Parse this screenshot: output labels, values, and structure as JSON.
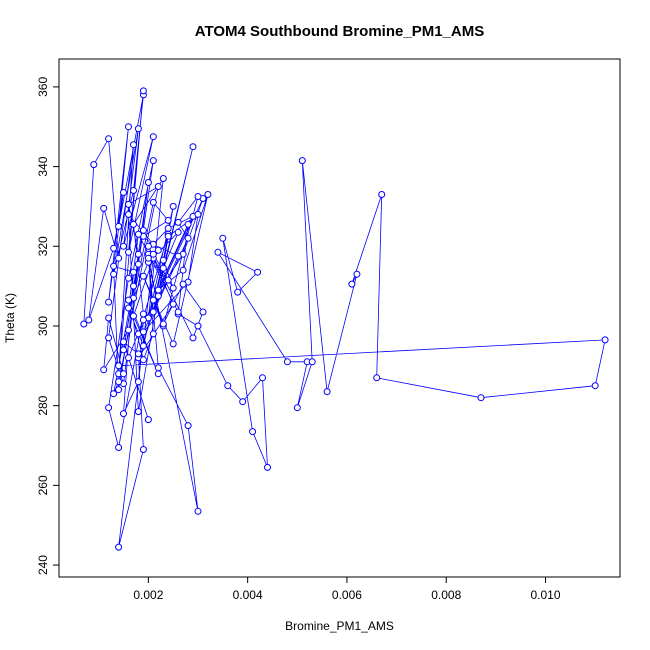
{
  "chart_data": {
    "type": "line",
    "title": "ATOM4 Southbound Bromine_PM1_AMS",
    "xlabel": "Bromine_PM1_AMS",
    "ylabel": "Theta (K)",
    "xlim": [
      0.0002,
      0.0115
    ],
    "ylim": [
      237,
      367
    ],
    "xticks": [
      "0.002",
      "0.004",
      "0.006",
      "0.008",
      "0.010"
    ],
    "yticks": [
      "240",
      "260",
      "280",
      "300",
      "320",
      "340",
      "360"
    ],
    "grid": false,
    "series_color": "#0000ff",
    "marker": "open-circle",
    "x": [
      0.0007,
      0.0009,
      0.0012,
      0.0014,
      0.0011,
      0.0008,
      0.0013,
      0.0015,
      0.0012,
      0.0016,
      0.0014,
      0.0019,
      0.0017,
      0.0013,
      0.0018,
      0.0015,
      0.0021,
      0.0016,
      0.0019,
      0.0014,
      0.0017,
      0.0012,
      0.0015,
      0.002,
      0.0018,
      0.0016,
      0.0022,
      0.0014,
      0.0013,
      0.0017,
      0.0019,
      0.0015,
      0.0018,
      0.0021,
      0.0016,
      0.0012,
      0.0014,
      0.0019,
      0.0017,
      0.0023,
      0.002,
      0.0025,
      0.0018,
      0.0016,
      0.0022,
      0.0019,
      0.0024,
      0.0021,
      0.0017,
      0.002,
      0.0026,
      0.0023,
      0.0029,
      0.0022,
      0.0027,
      0.0031,
      0.0018,
      0.0024,
      0.0021,
      0.0028,
      0.0026,
      0.003,
      0.0023,
      0.0019,
      0.0025,
      0.0032,
      0.0027,
      0.0022,
      0.0029,
      0.0024,
      0.0021,
      0.0026,
      0.0019,
      0.0028,
      0.003,
      0.0024,
      0.0022,
      0.0018,
      0.0025,
      0.002,
      0.0029,
      0.0031,
      0.0027,
      0.0023,
      0.0021,
      0.0028,
      0.0026,
      0.003,
      0.0036,
      0.0039,
      0.0043,
      0.0044,
      0.0041,
      0.0035,
      0.0038,
      0.0042,
      0.0034,
      0.0048,
      0.0052,
      0.005,
      0.0053,
      0.0051,
      0.0056,
      0.0062,
      0.0061,
      0.0067,
      0.0066,
      0.0087,
      0.011,
      0.0112,
      0.0014,
      0.0015,
      0.0012,
      0.0011,
      0.0016,
      0.0014,
      0.0013,
      0.0017,
      0.0015,
      0.0018,
      0.0019,
      0.0016,
      0.002,
      0.0015,
      0.0018,
      0.0019,
      0.0014,
      0.0021,
      0.0017,
      0.0022,
      0.0016,
      0.0019,
      0.0021,
      0.002,
      0.0022,
      0.0028,
      0.003,
      0.002,
      0.0024,
      0.0021,
      0.0025,
      0.0023,
      0.0019,
      0.0016,
      0.0018,
      0.0026
    ],
    "y": [
      300.5,
      340.5,
      347.0,
      317.0,
      329.5,
      301.5,
      319.5,
      333.5,
      306.0,
      350.0,
      325.0,
      358.0,
      334.0,
      313.0,
      349.5,
      320.0,
      347.5,
      318.5,
      359.0,
      288.0,
      345.5,
      297.0,
      285.5,
      336.0,
      318.0,
      330.5,
      335.0,
      286.0,
      283.0,
      310.0,
      324.0,
      294.0,
      315.5,
      341.5,
      312.0,
      279.5,
      269.5,
      303.0,
      325.5,
      337.0,
      302.0,
      330.0,
      278.5,
      328.0,
      319.0,
      322.5,
      326.5,
      331.0,
      307.0,
      316.0,
      323.5,
      314.5,
      345.0,
      308.5,
      318.0,
      332.0,
      298.0,
      323.0,
      303.5,
      322.0,
      326.0,
      332.5,
      300.0,
      312.5,
      295.5,
      333.0,
      314.0,
      309.0,
      327.5,
      324.5,
      320.5,
      317.5,
      298.5,
      311.0,
      328.0,
      322.5,
      307.5,
      292.0,
      305.5,
      320.0,
      297.0,
      303.5,
      310.5,
      300.5,
      306.5,
      325.5,
      303.0,
      300.0,
      285.0,
      281.0,
      287.0,
      264.5,
      273.5,
      322.0,
      308.5,
      313.5,
      318.5,
      291.0,
      291.0,
      279.5,
      291.0,
      341.5,
      283.5,
      313.0,
      310.5,
      333.0,
      287.0,
      282.0,
      285.0,
      296.5,
      290.0,
      288.0,
      302.0,
      289.0,
      299.0,
      284.0,
      315.0,
      313.5,
      278.0,
      286.0,
      301.5,
      292.0,
      276.5,
      296.0,
      293.0,
      269.0,
      244.5,
      317.0,
      302.5,
      288.0,
      306.5,
      291.5,
      298.0,
      318.0,
      289.5,
      275.0,
      253.5,
      317.0,
      311.5,
      318.0,
      309.5,
      316.5,
      295.0,
      304.5,
      323.0,
      303.5
    ]
  }
}
